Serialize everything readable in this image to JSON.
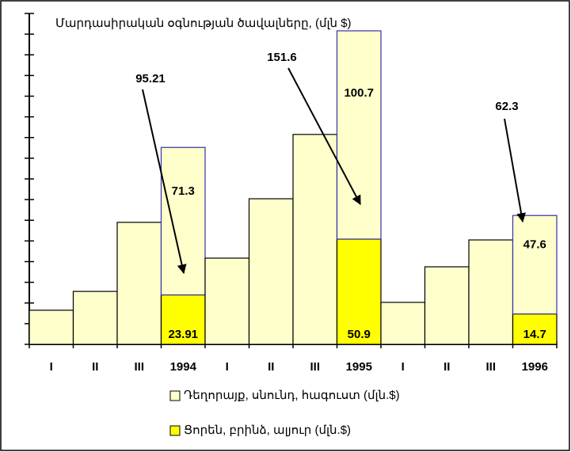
{
  "chart_data": {
    "type": "stacked-bar",
    "title": "Մարդասիրական օգնության ծավալները, (մլն $)",
    "categories": [
      "I",
      "II",
      "III",
      "1994",
      "I",
      "II",
      "III",
      "1995",
      "I",
      "II",
      "III",
      "1996"
    ],
    "series": [
      {
        "name": "Ցորեն, բրինձ, ալյուր (մլն.$)",
        "color": "#ffff00",
        "values": [
          null,
          null,
          null,
          23.91,
          null,
          null,
          null,
          50.9,
          null,
          null,
          null,
          14.7
        ]
      },
      {
        "name": "Դեղորայք, սնունդ, հագուստ (մլն.$)",
        "color": "#ffffcc",
        "values": [
          16.5,
          25.6,
          59,
          71.3,
          41.7,
          70.4,
          101.5,
          100.7,
          20.3,
          37.5,
          50.5,
          47.6
        ]
      }
    ],
    "ylim": [
      0,
      160
    ],
    "yticks": [
      0,
      10,
      20,
      30,
      40,
      50,
      60,
      70,
      80,
      90,
      100,
      110,
      120,
      130,
      140,
      150,
      160
    ],
    "annotations": [
      {
        "x": "1994",
        "value": 95.21
      },
      {
        "x": "1995",
        "value": 151.6
      },
      {
        "x": "1996",
        "value": 62.3
      }
    ]
  }
}
